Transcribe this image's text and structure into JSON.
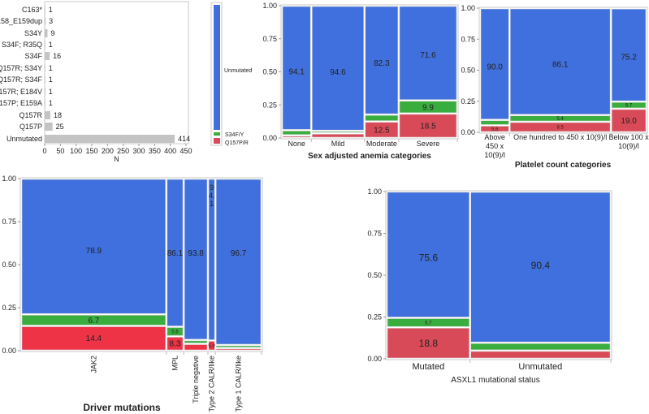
{
  "colors": {
    "unmutated": "#4070dd",
    "s34fy": "#3aad3f",
    "q157pr": "#d94a58",
    "q157pr_bright": "#ee3347",
    "bar": "#c4c4c4"
  },
  "chart_data": [
    {
      "id": "bar",
      "type": "bar",
      "orientation": "horizontal",
      "categories": [
        "C163*",
        "Y158_E159dup",
        "S34Y",
        "S34F; R35Q",
        "S34F",
        "Q157R; S34Y",
        "Q157R; S34F",
        "Q157R; E184V",
        "Q157P; E159A",
        "Q157R",
        "Q157P",
        "Unmutated"
      ],
      "values": [
        1,
        3,
        9,
        1,
        16,
        1,
        1,
        1,
        1,
        18,
        25,
        414
      ],
      "xlabel": "N",
      "xticks": [
        "0",
        "50",
        "100",
        "150",
        "200",
        "250",
        "300",
        "350",
        "400",
        "450"
      ],
      "xlim": [
        0,
        450
      ]
    },
    {
      "id": "legend",
      "type": "legend",
      "entries": [
        "Unmutated",
        "S34F/Y",
        "Q157P/R"
      ]
    },
    {
      "id": "anemia",
      "type": "mosaic",
      "xlabel": "Sex adjusted anemia categories",
      "yticks": [
        "0.00",
        "0.25",
        "0.50",
        "0.75",
        "1.00"
      ],
      "columns": [
        {
          "label": [
            "None"
          ],
          "share": 0.165,
          "segments": [
            {
              "name": "Q157P/R",
              "value": 2.0,
              "label": ""
            },
            {
              "name": "S34F/Y",
              "value": 3.9,
              "label": ""
            },
            {
              "name": "Unmutated",
              "value": 94.1,
              "label": "94.1"
            }
          ]
        },
        {
          "label": [
            "Mild"
          ],
          "share": 0.298,
          "segments": [
            {
              "name": "Q157P/R",
              "value": 3.5,
              "label": ""
            },
            {
              "name": "S34F/Y",
              "value": 1.9,
              "label": ""
            },
            {
              "name": "Unmutated",
              "value": 94.6,
              "label": "94.6"
            }
          ]
        },
        {
          "label": [
            "Moderate"
          ],
          "share": 0.192,
          "segments": [
            {
              "name": "Q157P/R",
              "value": 12.5,
              "label": "12.5"
            },
            {
              "name": "S34F/Y",
              "value": 5.2,
              "label": ""
            },
            {
              "name": "Unmutated",
              "value": 82.3,
              "label": "82.3"
            }
          ]
        },
        {
          "label": [
            "Severe"
          ],
          "share": 0.328,
          "segments": [
            {
              "name": "Q157P/R",
              "value": 18.5,
              "label": "18.5"
            },
            {
              "name": "S34F/Y",
              "value": 9.9,
              "label": "9.9"
            },
            {
              "name": "Unmutated",
              "value": 71.6,
              "label": "71.6"
            }
          ]
        }
      ]
    },
    {
      "id": "platelet",
      "type": "mosaic",
      "xlabel": "Platelet count categories",
      "yticks": [
        "0.00",
        "0.25",
        "0.50",
        "0.75",
        "1.00"
      ],
      "columns": [
        {
          "label": [
            "Above",
            "450 x",
            "10(9)/l"
          ],
          "share": 0.177,
          "segments": [
            {
              "name": "Q157P/R",
              "value": 5.6,
              "label": "5.6"
            },
            {
              "name": "S34F/Y",
              "value": 4.4,
              "label": ""
            },
            {
              "name": "Unmutated",
              "value": 90.0,
              "label": "90.0"
            }
          ]
        },
        {
          "label": [
            "One hundred to 450 x 10(9)/l"
          ],
          "share": 0.609,
          "segments": [
            {
              "name": "Q157P/R",
              "value": 8.5,
              "label": "8.5"
            },
            {
              "name": "S34F/Y",
              "value": 5.4,
              "label": "5.4"
            },
            {
              "name": "Unmutated",
              "value": 86.1,
              "label": "86.1"
            }
          ]
        },
        {
          "label": [
            "Below 100 x",
            "10(9)/l"
          ],
          "share": 0.214,
          "segments": [
            {
              "name": "Q157P/R",
              "value": 19.0,
              "label": "19.0"
            },
            {
              "name": "S34F/Y",
              "value": 5.7,
              "label": "5.7"
            },
            {
              "name": "Unmutated",
              "value": 75.2,
              "label": "75.2"
            }
          ]
        }
      ]
    },
    {
      "id": "driver",
      "type": "mosaic",
      "xlabel": "Driver mutations",
      "yticks": [
        "0.00",
        "0.25",
        "0.50",
        "0.75",
        "1.00"
      ],
      "columns": [
        {
          "label": [
            "JAK2"
          ],
          "share": 0.604,
          "segments": [
            {
              "name": "Q157P/R",
              "value": 14.4,
              "label": "14.4"
            },
            {
              "name": "S34F/Y",
              "value": 6.7,
              "label": "6.7"
            },
            {
              "name": "Unmutated",
              "value": 78.9,
              "label": "78.9"
            }
          ]
        },
        {
          "label": [
            "MPL"
          ],
          "share": 0.072,
          "segments": [
            {
              "name": "Q157P/R",
              "value": 8.3,
              "label": "8.3"
            },
            {
              "name": "S34F/Y",
              "value": 5.6,
              "label": "5.6"
            },
            {
              "name": "Unmutated",
              "value": 86.1,
              "label": "86.1"
            }
          ]
        },
        {
          "label": [
            "Triple negative"
          ],
          "share": 0.101,
          "segments": [
            {
              "name": "Q157P/R",
              "value": 4.0,
              "label": ""
            },
            {
              "name": "S34F/Y",
              "value": 2.2,
              "label": ""
            },
            {
              "name": "Unmutated",
              "value": 93.8,
              "label": "93.8"
            }
          ]
        },
        {
          "label": [
            "Type 2 CALR/like"
          ],
          "share": 0.031,
          "segments": [
            {
              "name": "Q157P/R",
              "value": 5.9,
              "label": "5.9"
            },
            {
              "name": "S34F/Y",
              "value": 0,
              "label": ""
            },
            {
              "name": "Unmutated",
              "value": 94.1,
              "label": "94.1"
            }
          ]
        },
        {
          "label": [
            "Type 1 CALR/like"
          ],
          "share": 0.192,
          "segments": [
            {
              "name": "Q157P/R",
              "value": 1.5,
              "label": ""
            },
            {
              "name": "S34F/Y",
              "value": 1.8,
              "label": ""
            },
            {
              "name": "Unmutated",
              "value": 96.7,
              "label": "96.7"
            }
          ]
        }
      ]
    },
    {
      "id": "asxl1",
      "type": "mosaic",
      "xlabel": "ASXL1 mutational status",
      "yticks": [
        "0.00",
        "0.25",
        "0.50",
        "0.75",
        "1.00"
      ],
      "columns": [
        {
          "label": [
            "Mutated"
          ],
          "share": 0.372,
          "segments": [
            {
              "name": "Q157P/R",
              "value": 18.8,
              "label": "18.8"
            },
            {
              "name": "S34F/Y",
              "value": 5.7,
              "label": "5.7"
            },
            {
              "name": "Unmutated",
              "value": 75.6,
              "label": "75.6"
            }
          ]
        },
        {
          "label": [
            "Unmutated"
          ],
          "share": 0.628,
          "segments": [
            {
              "name": "Q157P/R",
              "value": 4.9,
              "label": ""
            },
            {
              "name": "S34F/Y",
              "value": 4.7,
              "label": ""
            },
            {
              "name": "Unmutated",
              "value": 90.4,
              "label": "90.4"
            }
          ]
        }
      ]
    }
  ]
}
